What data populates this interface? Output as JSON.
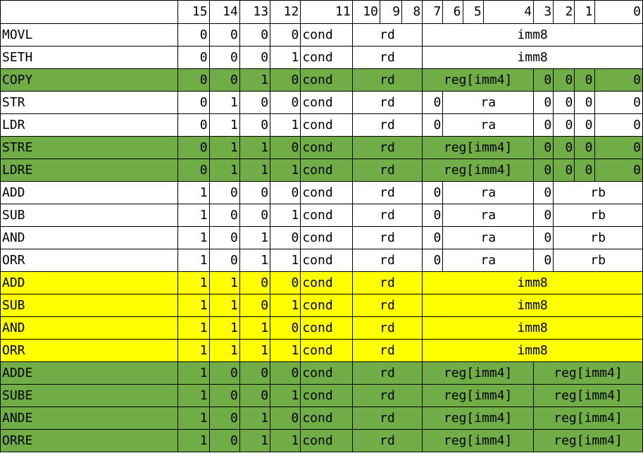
{
  "header": [
    "",
    "15",
    "14",
    "13",
    "12",
    "11",
    "10",
    "9",
    "8",
    "7",
    "6",
    "5",
    "4",
    "3",
    "2",
    "1",
    "0"
  ],
  "colors": {
    "green": "#70ad47",
    "yellow": "#ffff00",
    "white": "#ffffff"
  },
  "rows": [
    {
      "fill": "white",
      "name": "MOVL",
      "b15": "0",
      "b14": "0",
      "b13": "0",
      "b12": "0",
      "cond": "cond",
      "rd": "rd",
      "imm": "imm8"
    },
    {
      "fill": "white",
      "name": "SETH",
      "b15": "0",
      "b14": "0",
      "b13": "0",
      "b12": "1",
      "cond": "cond",
      "rd": "rd",
      "imm": "imm8"
    },
    {
      "fill": "green",
      "name": "COPY",
      "b15": "0",
      "b14": "0",
      "b13": "1",
      "b12": "0",
      "cond": "cond",
      "rd": "rd",
      "reg": "reg[imm4]",
      "b3": "0",
      "b2": "0",
      "b1": "0",
      "b0": "0"
    },
    {
      "fill": "white",
      "name": "STR",
      "b15": "0",
      "b14": "1",
      "b13": "0",
      "b12": "0",
      "cond": "cond",
      "rd": "rd",
      "b7": "0",
      "ra": "ra",
      "b3": "0",
      "b2": "0",
      "b1": "0",
      "b0": "0"
    },
    {
      "fill": "white",
      "name": "LDR",
      "b15": "0",
      "b14": "1",
      "b13": "0",
      "b12": "1",
      "cond": "cond",
      "rd": "rd",
      "b7": "0",
      "ra": "ra",
      "b3": "0",
      "b2": "0",
      "b1": "0",
      "b0": "0"
    },
    {
      "fill": "green",
      "name": "STRE",
      "b15": "0",
      "b14": "1",
      "b13": "1",
      "b12": "0",
      "cond": "cond",
      "rd": "rd",
      "reg": "reg[imm4]",
      "b3": "0",
      "b2": "0",
      "b1": "0",
      "b0": "0"
    },
    {
      "fill": "green",
      "name": "LDRE",
      "b15": "0",
      "b14": "1",
      "b13": "1",
      "b12": "1",
      "cond": "cond",
      "rd": "rd",
      "reg": "reg[imm4]",
      "b3": "0",
      "b2": "0",
      "b1": "0",
      "b0": "0"
    },
    {
      "fill": "white",
      "name": "ADD",
      "b15": "1",
      "b14": "0",
      "b13": "0",
      "b12": "0",
      "cond": "cond",
      "rd": "rd",
      "b7": "0",
      "ra": "ra",
      "b3": "0",
      "rb": "rb"
    },
    {
      "fill": "white",
      "name": "SUB",
      "b15": "1",
      "b14": "0",
      "b13": "0",
      "b12": "1",
      "cond": "cond",
      "rd": "rd",
      "b7": "0",
      "ra": "ra",
      "b3": "0",
      "rb": "rb"
    },
    {
      "fill": "white",
      "name": "AND",
      "b15": "1",
      "b14": "0",
      "b13": "1",
      "b12": "0",
      "cond": "cond",
      "rd": "rd",
      "b7": "0",
      "ra": "ra",
      "b3": "0",
      "rb": "rb"
    },
    {
      "fill": "white",
      "name": "ORR",
      "b15": "1",
      "b14": "0",
      "b13": "1",
      "b12": "1",
      "cond": "cond",
      "rd": "rd",
      "b7": "0",
      "ra": "ra",
      "b3": "0",
      "rb": "rb"
    },
    {
      "fill": "yellow",
      "name": "ADD",
      "b15": "1",
      "b14": "1",
      "b13": "0",
      "b12": "0",
      "cond": "cond",
      "rd": "rd",
      "imm": "imm8"
    },
    {
      "fill": "yellow",
      "name": "SUB",
      "b15": "1",
      "b14": "1",
      "b13": "0",
      "b12": "1",
      "cond": "cond",
      "rd": "rd",
      "imm": "imm8"
    },
    {
      "fill": "yellow",
      "name": "AND",
      "b15": "1",
      "b14": "1",
      "b13": "1",
      "b12": "0",
      "cond": "cond",
      "rd": "rd",
      "imm": "imm8"
    },
    {
      "fill": "yellow",
      "name": "ORR",
      "b15": "1",
      "b14": "1",
      "b13": "1",
      "b12": "1",
      "cond": "cond",
      "rd": "rd",
      "imm": "imm8"
    },
    {
      "fill": "green",
      "name": "ADDE",
      "b15": "1",
      "b14": "0",
      "b13": "0",
      "b12": "0",
      "cond": "cond",
      "rd": "rd",
      "reg": "reg[imm4]",
      "reg2": "reg[imm4]"
    },
    {
      "fill": "green",
      "name": "SUBE",
      "b15": "1",
      "b14": "0",
      "b13": "0",
      "b12": "1",
      "cond": "cond",
      "rd": "rd",
      "reg": "reg[imm4]",
      "reg2": "reg[imm4]"
    },
    {
      "fill": "green",
      "name": "ANDE",
      "b15": "1",
      "b14": "0",
      "b13": "1",
      "b12": "0",
      "cond": "cond",
      "rd": "rd",
      "reg": "reg[imm4]",
      "reg2": "reg[imm4]"
    },
    {
      "fill": "green",
      "name": "ORRE",
      "b15": "1",
      "b14": "0",
      "b13": "1",
      "b12": "1",
      "cond": "cond",
      "rd": "rd",
      "reg": "reg[imm4]",
      "reg2": "reg[imm4]"
    }
  ]
}
